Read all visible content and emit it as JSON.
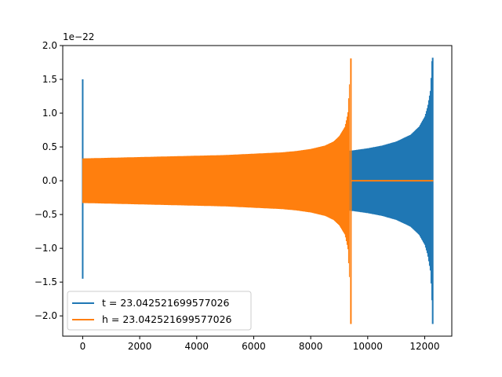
{
  "chart_data": {
    "type": "line",
    "title": "",
    "xlabel": "",
    "ylabel": "",
    "y_offset_label": "1e−22",
    "xlim": [
      -700,
      12950
    ],
    "ylim": [
      -2.3,
      2.0
    ],
    "x_ticks": [
      0,
      2000,
      4000,
      6000,
      8000,
      10000,
      12000
    ],
    "x_tick_labels": [
      "0",
      "2000",
      "4000",
      "6000",
      "8000",
      "10000",
      "12000"
    ],
    "y_ticks": [
      -2.0,
      -1.5,
      -1.0,
      -0.5,
      0.0,
      0.5,
      1.0,
      1.5,
      2.0
    ],
    "y_tick_labels": [
      "−2.0",
      "−1.5",
      "−1.0",
      "−0.5",
      "0.0",
      "0.5",
      "1.0",
      "1.5",
      "2.0"
    ],
    "grid": false,
    "legend_position": "lower-left",
    "series": [
      {
        "name": "t = 23.042521699577026",
        "color": "#1f77b4",
        "start_spike": {
          "x": 0,
          "max": 1.5,
          "min": -1.45
        },
        "envelope": {
          "x": [
            0,
            1000,
            2000,
            3000,
            4000,
            5000,
            6000,
            7000,
            8000,
            9000,
            9500,
            10000,
            10500,
            11000,
            11500,
            11800,
            12000,
            12100,
            12200,
            12250
          ],
          "amplitude": [
            0.33,
            0.33,
            0.34,
            0.35,
            0.36,
            0.37,
            0.38,
            0.39,
            0.4,
            0.43,
            0.45,
            0.48,
            0.52,
            0.58,
            0.68,
            0.8,
            0.95,
            1.1,
            1.35,
            1.8
          ]
        },
        "end_spike": {
          "x": 12280,
          "max": 1.82,
          "min": -2.12
        },
        "x_end": 12300
      },
      {
        "name": "h = 23.042521699577026",
        "color": "#ff7f0e",
        "envelope": {
          "x": [
            0,
            1000,
            2000,
            3000,
            4000,
            5000,
            6000,
            7000,
            7500,
            8000,
            8500,
            8800,
            9000,
            9200,
            9300,
            9380
          ],
          "amplitude": [
            0.33,
            0.34,
            0.35,
            0.36,
            0.37,
            0.38,
            0.4,
            0.42,
            0.44,
            0.47,
            0.52,
            0.58,
            0.66,
            0.8,
            1.0,
            1.6
          ]
        },
        "end_spike": {
          "x": 9410,
          "max": 1.81,
          "min": -2.12
        },
        "flat_after": {
          "x_start": 9420,
          "x_end": 12300,
          "value": 0.0
        }
      }
    ]
  }
}
